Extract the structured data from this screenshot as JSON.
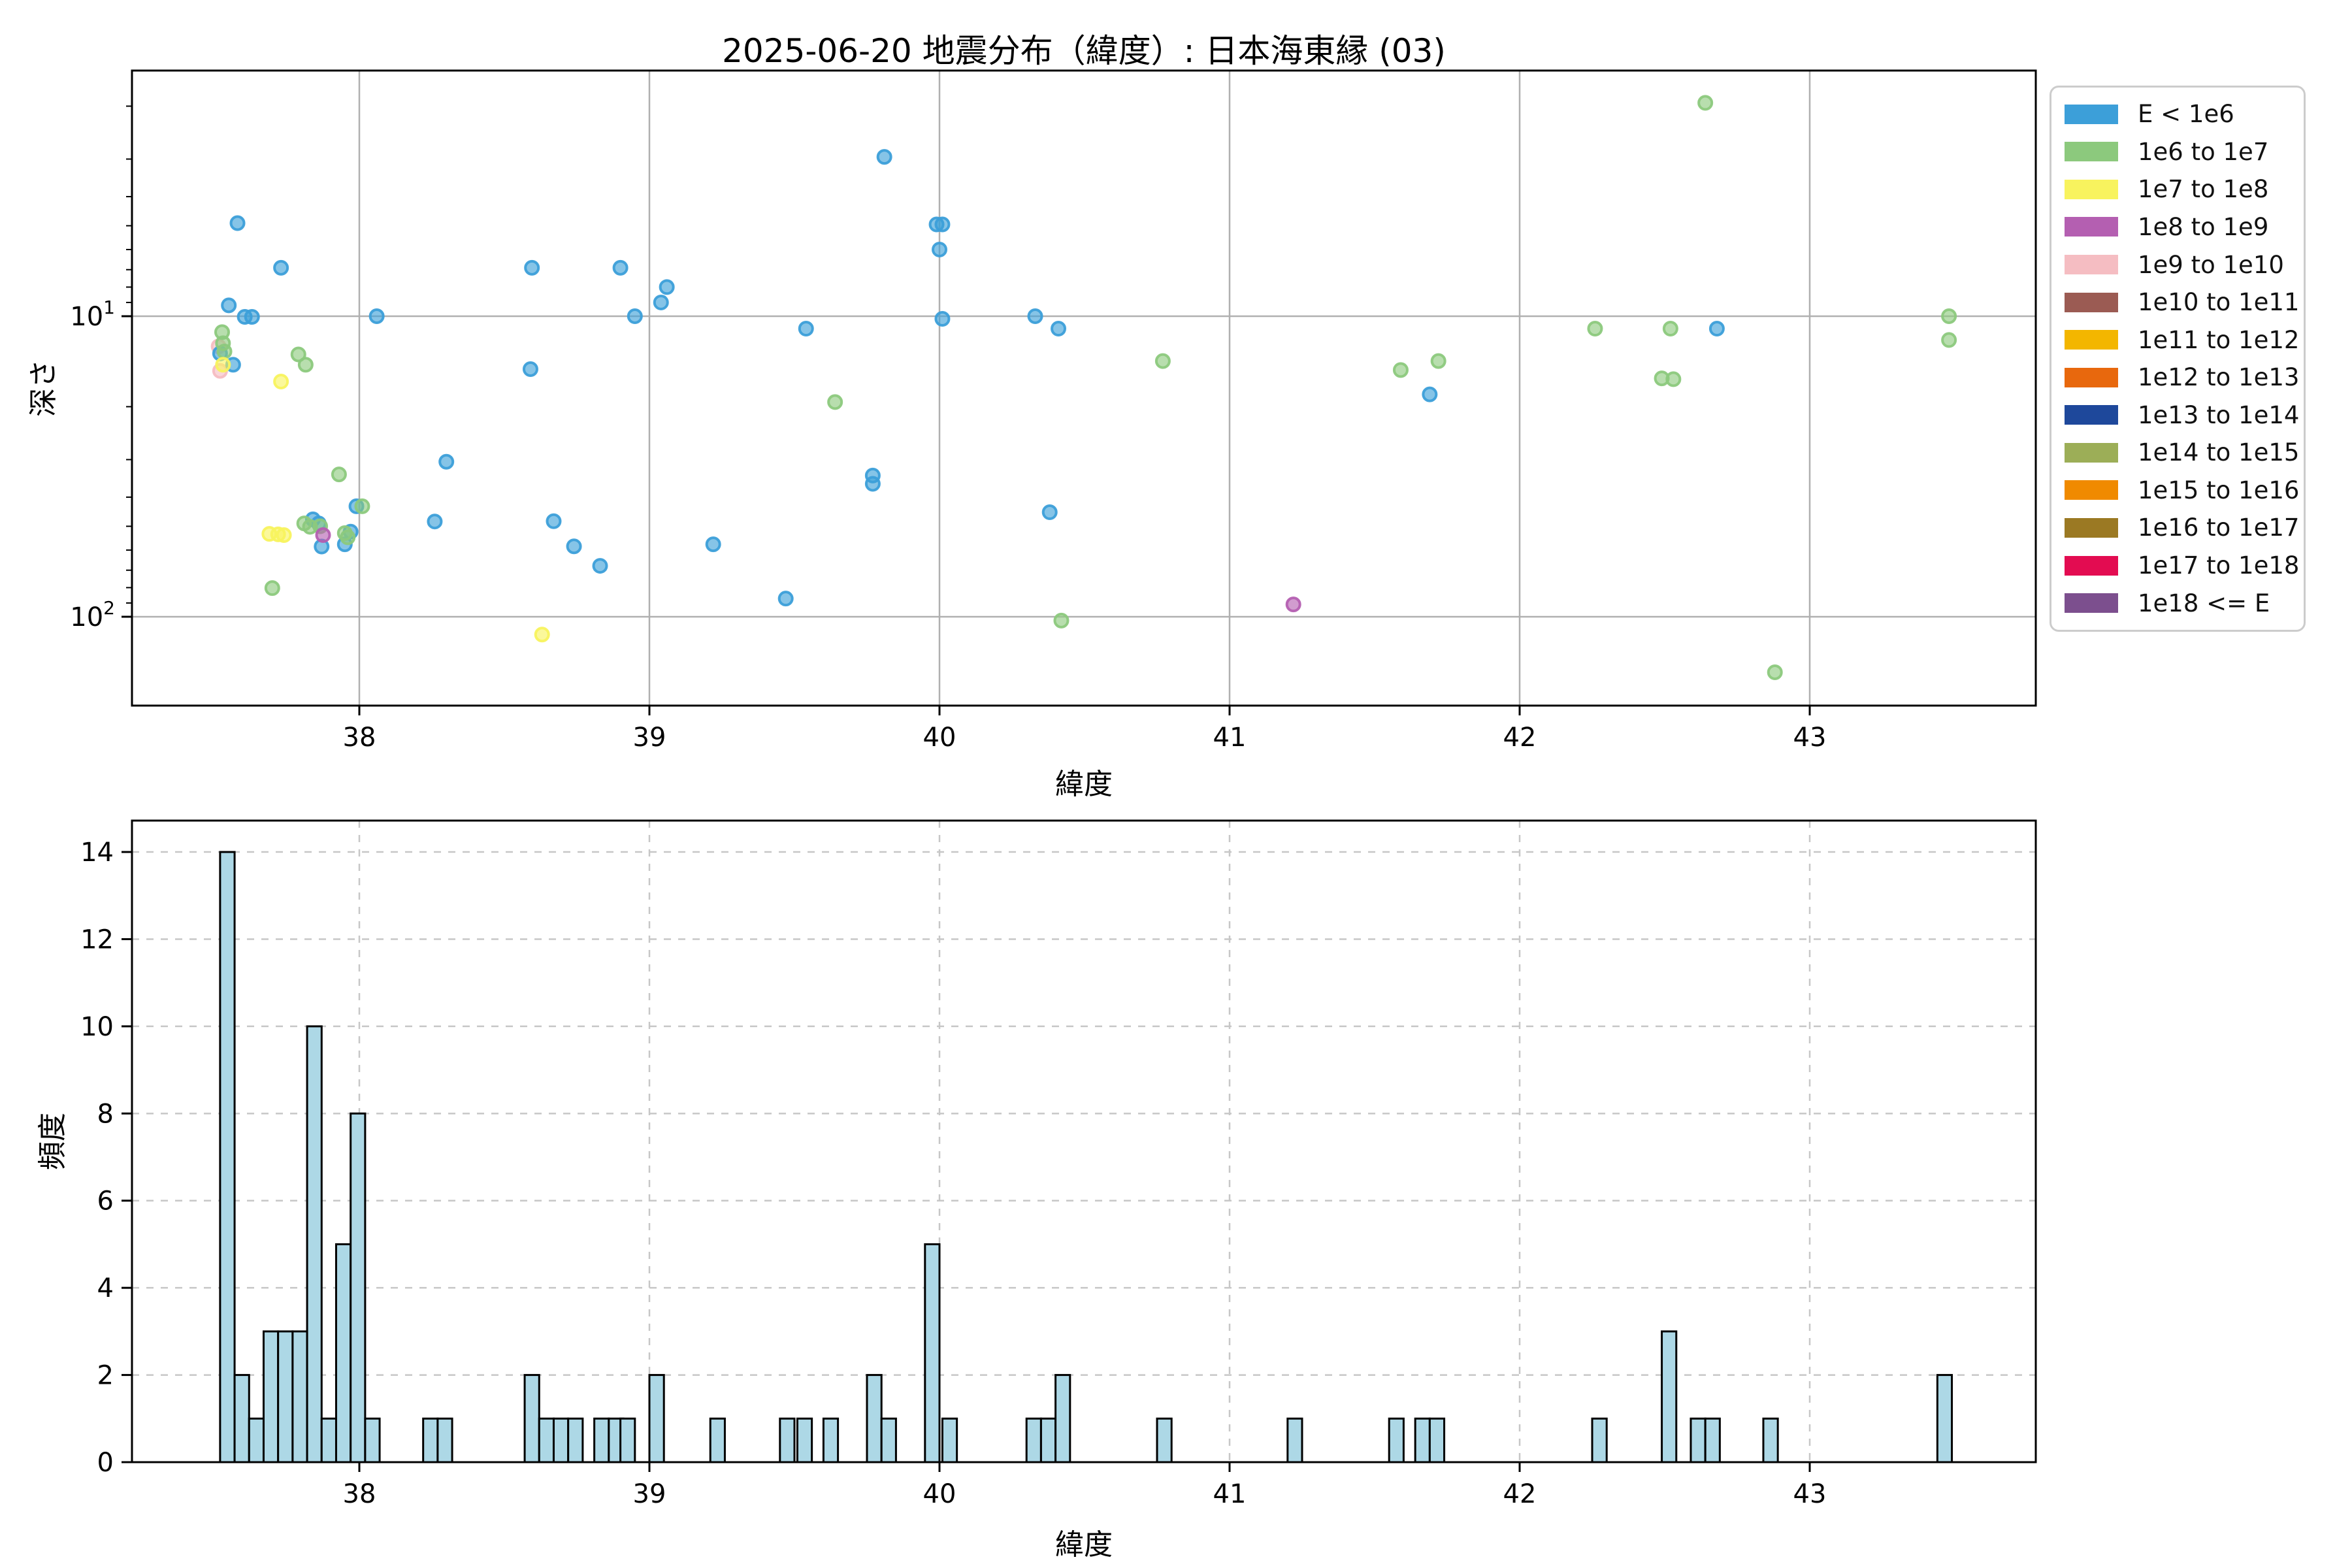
{
  "title": "2025-06-20 地震分布（緯度）: 日本海東縁 (03)",
  "scatter": {
    "xlabel": "緯度",
    "ylabel": "深さ"
  },
  "histogram": {
    "xlabel": "緯度",
    "ylabel": "頻度"
  },
  "legend": {
    "items": [
      {
        "label": "E < 1e6",
        "color": "#3C9FD9"
      },
      {
        "label": "1e6 to 1e7",
        "color": "#8CC97D"
      },
      {
        "label": "1e7 to 1e8",
        "color": "#F8F35E"
      },
      {
        "label": "1e8 to 1e9",
        "color": "#B45FB1"
      },
      {
        "label": "1e9 to 1e10",
        "color": "#F5BDC2"
      },
      {
        "label": "1e10 to 1e11",
        "color": "#9B5B53"
      },
      {
        "label": "1e11 to 1e12",
        "color": "#F3B600"
      },
      {
        "label": "1e12 to 1e13",
        "color": "#E8680D"
      },
      {
        "label": "1e13 to 1e14",
        "color": "#1E489B"
      },
      {
        "label": "1e14 to 1e15",
        "color": "#9CAE57"
      },
      {
        "label": "1e15 to 1e16",
        "color": "#F08A00"
      },
      {
        "label": "1e16 to 1e17",
        "color": "#9B7923"
      },
      {
        "label": "1e17 to 1e18",
        "color": "#E30C51"
      },
      {
        "label": "1e18 <= E",
        "color": "#7C4F8E"
      }
    ]
  },
  "chart_data": [
    {
      "type": "scatter",
      "title": "2025-06-20 地震分布（緯度）: 日本海東縁 (03)",
      "xlabel": "緯度",
      "ylabel": "深さ",
      "xlim": [
        37.216,
        43.779
      ],
      "ylim": [
        197,
        1.5
      ],
      "xticks": [
        38,
        39,
        40,
        41,
        42,
        43
      ],
      "yticks": [
        10,
        100
      ],
      "ytick_labels": [
        "10¹",
        "10²"
      ],
      "y_minor_ticks": [
        2,
        3,
        4,
        5,
        6,
        7,
        8,
        9,
        20,
        30,
        40,
        50,
        60,
        70,
        80,
        90
      ],
      "y_scale": "log-inverted",
      "grid": "solid",
      "legend_position": "outside-right",
      "series": [
        {
          "name": "1e9 to 1e10",
          "color": "#F5BDC2",
          "points": [
            [
              37.515,
              12.6
            ],
            [
              37.52,
              15.2
            ]
          ]
        },
        {
          "name": "E < 1e6",
          "color": "#3C9FD9",
          "points": [
            [
              37.58,
              4.9
            ],
            [
              37.73,
              6.9
            ],
            [
              37.55,
              9.2
            ],
            [
              37.605,
              10.05
            ],
            [
              37.63,
              10.05
            ],
            [
              38.06,
              10.0
            ],
            [
              37.52,
              13.3
            ],
            [
              37.565,
              14.5
            ],
            [
              38.3,
              30.5
            ],
            [
              38.26,
              48.2
            ],
            [
              37.84,
              47.4
            ],
            [
              37.86,
              48.9
            ],
            [
              37.87,
              58.4
            ],
            [
              37.97,
              52.1
            ],
            [
              37.95,
              57.4
            ],
            [
              37.99,
              42.9
            ],
            [
              38.595,
              6.9
            ],
            [
              38.9,
              6.9
            ],
            [
              38.95,
              10.0
            ],
            [
              38.59,
              15.0
            ],
            [
              38.67,
              48.1
            ],
            [
              38.74,
              58.3
            ],
            [
              38.83,
              67.7
            ],
            [
              39.81,
              2.95
            ],
            [
              39.99,
              4.95
            ],
            [
              40.01,
              4.95
            ],
            [
              40.0,
              6.0
            ],
            [
              39.06,
              8.0
            ],
            [
              39.04,
              9.0
            ],
            [
              40.01,
              10.2
            ],
            [
              40.33,
              10.0
            ],
            [
              40.41,
              11.0
            ],
            [
              39.54,
              11.0
            ],
            [
              39.77,
              33.9
            ],
            [
              39.77,
              36.1
            ],
            [
              40.38,
              44.9
            ],
            [
              39.22,
              57.4
            ],
            [
              39.47,
              87.0
            ],
            [
              41.69,
              18.2
            ],
            [
              42.68,
              11.0
            ]
          ]
        },
        {
          "name": "1e6 to 1e7",
          "color": "#8CC97D",
          "points": [
            [
              37.527,
              11.3
            ],
            [
              37.53,
              12.3
            ],
            [
              37.535,
              13.1
            ],
            [
              37.79,
              13.4
            ],
            [
              37.815,
              14.5
            ],
            [
              37.93,
              33.6
            ],
            [
              38.01,
              42.9
            ],
            [
              37.81,
              48.9
            ],
            [
              37.83,
              50.2
            ],
            [
              37.865,
              50.0
            ],
            [
              37.95,
              52.7
            ],
            [
              37.96,
              54.4
            ],
            [
              37.7,
              80.3
            ],
            [
              39.64,
              19.3
            ],
            [
              40.42,
              103.0
            ],
            [
              40.77,
              14.1
            ],
            [
              41.59,
              15.1
            ],
            [
              41.72,
              14.1
            ],
            [
              42.26,
              11.0
            ],
            [
              42.52,
              11.0
            ],
            [
              42.49,
              16.1
            ],
            [
              42.53,
              16.2
            ],
            [
              43.48,
              10.0
            ],
            [
              43.48,
              12.0
            ],
            [
              42.64,
              1.95
            ],
            [
              42.88,
              153.0
            ]
          ]
        },
        {
          "name": "1e7 to 1e8",
          "color": "#F8F35E",
          "points": [
            [
              37.53,
              14.5
            ],
            [
              37.73,
              16.5
            ],
            [
              37.69,
              53.0
            ],
            [
              37.72,
              53.2
            ],
            [
              37.74,
              53.5
            ],
            [
              38.63,
              114.6
            ]
          ]
        },
        {
          "name": "1e8 to 1e9",
          "color": "#B45FB1",
          "points": [
            [
              37.875,
              53.5
            ],
            [
              41.22,
              91.0
            ]
          ]
        }
      ]
    },
    {
      "type": "histogram",
      "xlabel": "緯度",
      "ylabel": "頻度",
      "xlim": [
        37.216,
        43.779
      ],
      "ylim": [
        0,
        14.7
      ],
      "xticks": [
        38,
        39,
        40,
        41,
        42,
        43
      ],
      "yticks": [
        0,
        2,
        4,
        6,
        8,
        10,
        12,
        14
      ],
      "grid": "dashed",
      "bar_color": "#ADD8E6",
      "bar_edge_color": "#000000",
      "bin_width": 0.05,
      "bars": [
        [
          37.545,
          14
        ],
        [
          37.595,
          2
        ],
        [
          37.645,
          1
        ],
        [
          37.695,
          3
        ],
        [
          37.745,
          3
        ],
        [
          37.795,
          3
        ],
        [
          37.845,
          10
        ],
        [
          37.895,
          1
        ],
        [
          37.945,
          5
        ],
        [
          37.995,
          8
        ],
        [
          38.045,
          1
        ],
        [
          38.245,
          1
        ],
        [
          38.295,
          1
        ],
        [
          38.595,
          2
        ],
        [
          38.645,
          1
        ],
        [
          38.695,
          1
        ],
        [
          38.745,
          1
        ],
        [
          38.835,
          1
        ],
        [
          38.885,
          1
        ],
        [
          38.925,
          1
        ],
        [
          39.025,
          2
        ],
        [
          39.235,
          1
        ],
        [
          39.475,
          1
        ],
        [
          39.535,
          1
        ],
        [
          39.625,
          1
        ],
        [
          39.775,
          2
        ],
        [
          39.825,
          1
        ],
        [
          39.975,
          5
        ],
        [
          40.035,
          1
        ],
        [
          40.325,
          1
        ],
        [
          40.375,
          1
        ],
        [
          40.425,
          2
        ],
        [
          40.775,
          1
        ],
        [
          41.225,
          1
        ],
        [
          41.575,
          1
        ],
        [
          41.665,
          1
        ],
        [
          41.715,
          1
        ],
        [
          42.275,
          1
        ],
        [
          42.515,
          3
        ],
        [
          42.615,
          1
        ],
        [
          42.665,
          1
        ],
        [
          42.865,
          1
        ],
        [
          43.465,
          2
        ]
      ]
    }
  ]
}
